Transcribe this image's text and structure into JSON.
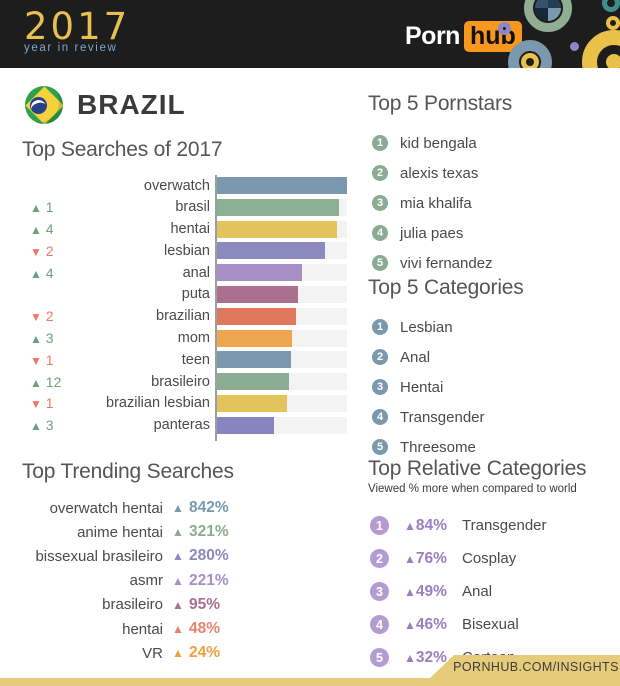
{
  "header": {
    "logo_year": "2017",
    "logo_subtitle": "year in review",
    "brand_porn": "Porn",
    "brand_hub": "hub"
  },
  "country": {
    "name": "BRAZIL"
  },
  "icons": {
    "up_triangle": "▲",
    "down_triangle": "▼"
  },
  "colors": {
    "up_green": "#6f9f7d",
    "down_red": "#ee7961",
    "pornstars_badge": "#8bab94",
    "categories_badge": "#7b99ae",
    "relative_badge": "#b49bd2",
    "relative_value": "#9b7fc0",
    "brand_orange": "#f7971d",
    "footer_gold": "#e6cc7a"
  },
  "chart_data": {
    "type": "bar",
    "title": "Top Searches of 2017",
    "orientation": "horizontal",
    "xlim": [
      0,
      100
    ],
    "grid": false,
    "value_unit": "relative search volume (% of top bar, est. from pixels)",
    "rows": [
      {
        "label": "overwatch",
        "value": 100,
        "change": null,
        "color": "#7b99ae"
      },
      {
        "label": "brasil",
        "value": 94,
        "change": 1,
        "color": "#8bb194"
      },
      {
        "label": "hentai",
        "value": 92,
        "change": 4,
        "color": "#e3c35c"
      },
      {
        "label": "lesbian",
        "value": 83,
        "change": -2,
        "color": "#8b89bd"
      },
      {
        "label": "anal",
        "value": 65,
        "change": 4,
        "color": "#a58fc5"
      },
      {
        "label": "puta",
        "value": 62,
        "change": null,
        "color": "#ab6f90"
      },
      {
        "label": "brazilian",
        "value": 61,
        "change": -2,
        "color": "#e0785e"
      },
      {
        "label": "mom",
        "value": 58,
        "change": 3,
        "color": "#eda64d"
      },
      {
        "label": "teen",
        "value": 57,
        "change": -1,
        "color": "#7b99ae"
      },
      {
        "label": "brasileiro",
        "value": 55,
        "change": 12,
        "color": "#8bab94"
      },
      {
        "label": "brazilian lesbian",
        "value": 54,
        "change": -1,
        "color": "#e3c35c"
      },
      {
        "label": "panteras",
        "value": 44,
        "change": 3,
        "color": "#8784bf"
      }
    ]
  },
  "trending": {
    "title": "Top Trending Searches",
    "items": [
      {
        "label": "overwatch hentai",
        "value": "842%",
        "color": "#7b99ae"
      },
      {
        "label": "anime hentai",
        "value": "321%",
        "color": "#8bab94"
      },
      {
        "label": "bissexual brasileiro",
        "value": "280%",
        "color": "#8b89bd"
      },
      {
        "label": "asmr",
        "value": "221%",
        "color": "#a58fc5"
      },
      {
        "label": "brasileiro",
        "value": "95%",
        "color": "#ab6f90"
      },
      {
        "label": "hentai",
        "value": "48%",
        "color": "#e8826a"
      },
      {
        "label": "VR",
        "value": "24%",
        "color": "#f0a03c"
      }
    ]
  },
  "pornstars": {
    "title": "Top 5 Pornstars",
    "items": [
      "kid bengala",
      "alexis texas",
      "mia khalifa",
      "julia paes",
      "vivi fernandez"
    ]
  },
  "categories": {
    "title": "Top 5 Categories",
    "items": [
      "Lesbian",
      "Anal",
      "Hentai",
      "Transgender",
      "Threesome"
    ]
  },
  "relative": {
    "title": "Top Relative Categories",
    "subtitle": "Viewed % more when compared to world",
    "items": [
      {
        "value": "84%",
        "label": "Transgender"
      },
      {
        "value": "76%",
        "label": "Cosplay"
      },
      {
        "value": "49%",
        "label": "Anal"
      },
      {
        "value": "46%",
        "label": "Bisexual"
      },
      {
        "value": "32%",
        "label": "Cartoon"
      }
    ]
  },
  "footer": {
    "text": "PORNHUB.COM/INSIGHTS"
  }
}
